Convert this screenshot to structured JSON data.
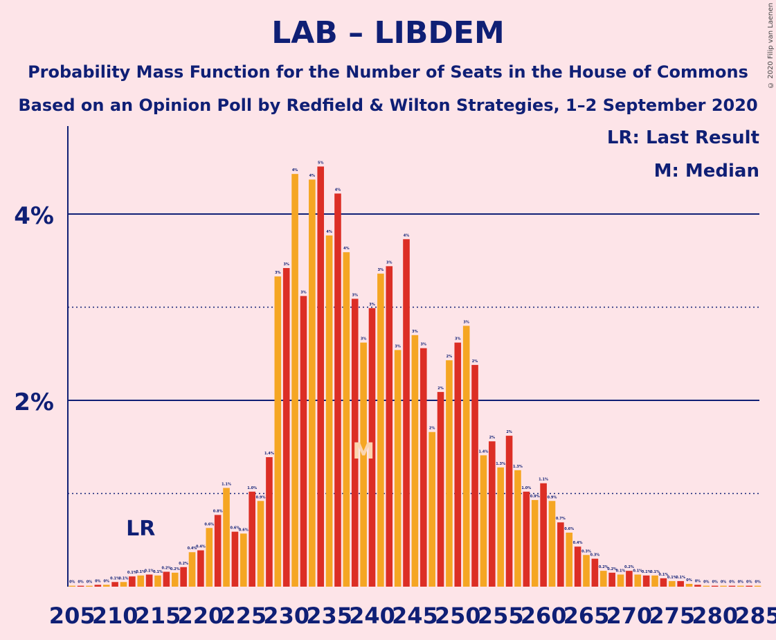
{
  "title": "LAB – LIBDEM",
  "subtitle1": "Probability Mass Function for the Number of Seats in the House of Commons",
  "subtitle2": "Based on an Opinion Poll by Redfield & Wilton Strategies, 1–2 September 2020",
  "copyright": "© 2020 Filip van Laenen",
  "legend": {
    "last_result": "LR: Last Result",
    "median": "M: Median"
  },
  "colors": {
    "background": "#fde4e8",
    "text": "#0f1f75",
    "bar_odd": "#f5a623",
    "bar_even": "#dc2e25",
    "median_marker": "#fbd5b0"
  },
  "chart_data": {
    "type": "bar",
    "title": "LAB – LIBDEM",
    "xlabel": "",
    "ylabel": "",
    "ylim": [
      0,
      4.9
    ],
    "y_ticks": [
      {
        "value": 2,
        "label": "2%"
      },
      {
        "value": 4,
        "label": "4%"
      }
    ],
    "dotted_gridlines": [
      1,
      3
    ],
    "x_tick_labels": [
      "205",
      "210",
      "215",
      "220",
      "225",
      "230",
      "235",
      "240",
      "245",
      "250",
      "255",
      "260",
      "265",
      "270",
      "275",
      "280",
      "285"
    ],
    "last_result": {
      "seat": 213,
      "label": "LR"
    },
    "median": {
      "seat": 239,
      "label": "M"
    },
    "seats": [
      205,
      206,
      207,
      208,
      209,
      210,
      211,
      212,
      213,
      214,
      215,
      216,
      217,
      218,
      219,
      220,
      221,
      222,
      223,
      224,
      225,
      226,
      227,
      228,
      229,
      230,
      231,
      232,
      233,
      234,
      235,
      236,
      237,
      238,
      239,
      240,
      241,
      242,
      243,
      244,
      245,
      246,
      247,
      248,
      249,
      250,
      251,
      252,
      253,
      254,
      255,
      256,
      257,
      258,
      259,
      260,
      261,
      262,
      263,
      264,
      265,
      266,
      267,
      268,
      269,
      270,
      271,
      272,
      273,
      274,
      275,
      276,
      277,
      278,
      279,
      280,
      281,
      282,
      283,
      284,
      285
    ],
    "values": [
      0.01,
      0.01,
      0.01,
      0.02,
      0.02,
      0.05,
      0.05,
      0.11,
      0.12,
      0.13,
      0.12,
      0.16,
      0.15,
      0.21,
      0.37,
      0.39,
      0.63,
      0.77,
      1.06,
      0.59,
      0.57,
      1.02,
      0.92,
      1.39,
      3.33,
      3.42,
      4.43,
      3.12,
      4.37,
      4.51,
      3.77,
      4.22,
      3.59,
      3.09,
      2.62,
      2.99,
      3.36,
      3.44,
      2.54,
      3.73,
      2.7,
      2.56,
      1.66,
      2.09,
      2.43,
      2.62,
      2.8,
      2.38,
      1.41,
      1.56,
      1.28,
      1.62,
      1.25,
      1.02,
      0.93,
      1.11,
      0.92,
      0.69,
      0.58,
      0.43,
      0.34,
      0.3,
      0.17,
      0.15,
      0.13,
      0.17,
      0.13,
      0.12,
      0.12,
      0.09,
      0.06,
      0.06,
      0.03,
      0.02,
      0.01,
      0.01,
      0.01,
      0.01,
      0.01,
      0.01,
      0.01
    ],
    "value_labels": [
      "0%",
      "0%",
      "0%",
      "0%",
      "0%",
      "0.1%",
      "0.1%",
      "0.1%",
      "0.1%",
      "0.1%",
      "0.1%",
      "0.2%",
      "0.2%",
      "0.2%",
      "0.4%",
      "0.4%",
      "0.6%",
      "0.8%",
      "1.1%",
      "0.6%",
      "0.6%",
      "1.0%",
      "0.9%",
      "1.4%",
      "3%",
      "3%",
      "4%",
      "3%",
      "4%",
      "5%",
      "4%",
      "4%",
      "4%",
      "3%",
      "3%",
      "3%",
      "3%",
      "3%",
      "3%",
      "4%",
      "3%",
      "3%",
      "2%",
      "2%",
      "2%",
      "3%",
      "3%",
      "2%",
      "1.4%",
      "2%",
      "1.3%",
      "2%",
      "1.3%",
      "1.0%",
      "0.9%",
      "1.1%",
      "0.9%",
      "0.7%",
      "0.6%",
      "0.4%",
      "0.3%",
      "0.3%",
      "0.2%",
      "0.2%",
      "0.1%",
      "0.2%",
      "0.1%",
      "0.1%",
      "0.1%",
      "0.1%",
      "0.1%",
      "0.1%",
      "0%",
      "0%",
      "0%",
      "0%",
      "0%",
      "0%",
      "0%",
      "0%",
      "0%"
    ]
  }
}
